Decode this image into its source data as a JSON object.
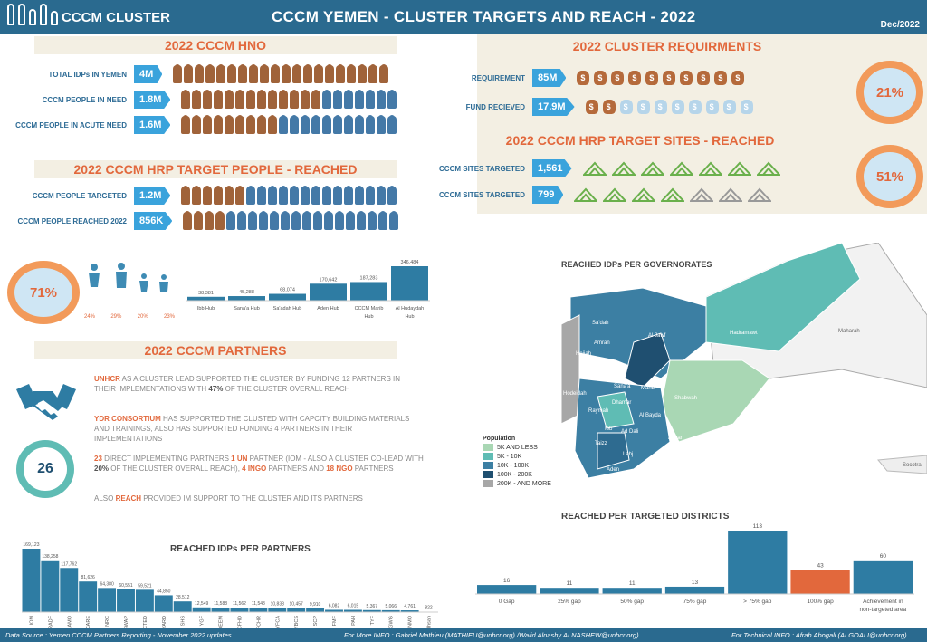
{
  "header": {
    "logo": "CCCM CLUSTER",
    "title": "CCCM YEMEN - CLUSTER TARGETS AND REACH - 2022",
    "date": "Dec/2022"
  },
  "hno": {
    "title": "2022 CCCM HNO",
    "rows": [
      {
        "label": "TOTAL IDPs IN YEMEN",
        "value": "4M"
      },
      {
        "label": "CCCM PEOPLE IN NEED",
        "value": "1.8M"
      },
      {
        "label": "CCCM PEOPLE IN ACUTE NEED",
        "value": "1.6M"
      }
    ]
  },
  "hrp_people": {
    "title": "2022 CCCM HRP TARGET PEOPLE  - REACHED",
    "rows": [
      {
        "label": "CCCM PEOPLE TARGETED",
        "value": "1.2M"
      },
      {
        "label": "CCCM PEOPLE REACHED 2022",
        "value": "856K"
      }
    ]
  },
  "requirements": {
    "title": "2022 CLUSTER REQUIRMENTS",
    "rows": [
      {
        "label": "REQUIREMENT",
        "value": "85M"
      },
      {
        "label": "FUND RECIEVED",
        "value": "17.9M"
      }
    ],
    "percent": "21%"
  },
  "sites": {
    "title": "2022 CCCM HRP TARGET SITES - REACHED",
    "rows": [
      {
        "label": "CCCM SITES TARGETED",
        "value": "1,561"
      },
      {
        "label": "CCCM SITES TARGETED",
        "value": "799"
      }
    ],
    "percent": "51%"
  },
  "reach": {
    "percent": "71%",
    "demo": [
      "24%",
      "29%",
      "20%",
      "23%"
    ]
  },
  "partners": {
    "title": "2022 CCCM PARTNERS",
    "count": "26",
    "p1_org": "UNHCR",
    "p1_a": " AS A CLUSTER LEAD SUPPORTED THE CLUSTER BY FUNDING 12 PARTNERS IN THEIR IMPLEMENTATIONS WITH ",
    "p1_pct": "47%",
    "p1_b": " OF THE CLUSTER OVERALL REACH",
    "p2_org": "YDR CONSORTIUM",
    "p2_a": "  HAS SUPPORTED THE CLUSTED WITH CAPCITY BUILDING MATERIALS AND TRAININGS, ALSO HAS SUPPORTED FUNDING 4 PARTNERS IN THEIR IMPLEMENTATIONS",
    "p3_n": "23",
    "p3_a": " DIRECT IMPLEMENTING PARTNERS ",
    "p3_un": "1 UN",
    "p3_b": " PARTNER (IOM - ALSO A CLUSTER CO-LEAD WITH ",
    "p3_pct": "20%",
    "p3_c": " OF THE CLUSTER OVERALL REACH), ",
    "p3_ingo": "4 INGO",
    "p3_d": " PARTNERS AND ",
    "p3_ngo": "18 NGO",
    "p3_e": " PARTNERS",
    "p4_a": "ALSO ",
    "p4_org": "REACH",
    "p4_b": "  PROVIDED IM SUPPORT TO THE CLUSTER AND ITS PARTNERS"
  },
  "map": {
    "title": "REACHED IDPs PER GOVERNORATES",
    "legend_title": "Population",
    "legend": [
      {
        "label": "5K AND LESS",
        "color": "#a9d7b4"
      },
      {
        "label": "5K - 10K",
        "color": "#5fbcb4"
      },
      {
        "label": "10K - 100K",
        "color": "#3c7fa3"
      },
      {
        "label": "100K - 200K",
        "color": "#1f4f70"
      },
      {
        "label": "200K - AND MORE",
        "color": "#a7a7a7"
      }
    ],
    "places": [
      "Sa'dah",
      "Al Jawf",
      "Hadramawt",
      "Maharah",
      "Amran",
      "Hajjah",
      "Sana'a City",
      "Al Mahwit",
      "Sana'a",
      "Marib",
      "Hodeidah",
      "Dhamar",
      "Shabwah",
      "Raymah",
      "Al Bayda",
      "Ibb",
      "Ad Dali",
      "Abyan",
      "Taizz",
      "Lahj",
      "Aden",
      "Socotra"
    ]
  },
  "chart_data": [
    {
      "type": "bar",
      "title": "",
      "categories": [
        "Ibb Hub",
        "Sana'a Hub",
        "Sa'adah Hub",
        "Aden Hub",
        "CCCM Marib Hub",
        "Al Hudaydah Hub"
      ],
      "values": [
        38381,
        45288,
        68074,
        170642,
        187283,
        346484
      ],
      "labels": [
        "38,381",
        "45,288",
        "68,074",
        "170,642",
        "187,283",
        "346,484"
      ]
    },
    {
      "type": "bar",
      "title": "REACHED IDPs PER PARTNERS",
      "categories": [
        "IOM",
        "RADF",
        "SHAMO",
        "CARE",
        "NRC",
        "USWAP",
        "ACTED",
        "YARD",
        "SHS",
        "YGF",
        "DEEM",
        "BCFHD",
        "BFCHR",
        "YFCA",
        "YBCS",
        "SCP",
        "FMF",
        "PAH",
        "TYF",
        "GWG",
        "NMO",
        "Al Ihsan"
      ],
      "values": [
        169123,
        138258,
        117762,
        81626,
        64380,
        60551,
        59521,
        44850,
        28512,
        12549,
        11588,
        11562,
        11548,
        10838,
        10457,
        9910,
        6082,
        6015,
        5367,
        5066,
        4761,
        822
      ],
      "labels": [
        "169,123",
        "138,258",
        "117,762",
        "81,626",
        "64,380",
        "60,551",
        "59,521",
        "44,850",
        "28,512",
        "12,549",
        "11,588",
        "11,562",
        "11,548",
        "10,838",
        "10,457",
        "9,910",
        "6,082",
        "6,015",
        "5,367",
        "5,066",
        "4,761",
        "822"
      ]
    },
    {
      "type": "bar",
      "title": "REACHED PER TARGETED DISTRICTS",
      "categories": [
        "0 Gap",
        "25% gap",
        "50% gap",
        "75% gap",
        "> 75% gap",
        "100% gap",
        "Achievement in non-targeted area"
      ],
      "values": [
        16,
        11,
        11,
        13,
        113,
        43,
        60
      ],
      "colors": [
        "#2e7ca3",
        "#2e7ca3",
        "#2e7ca3",
        "#2e7ca3",
        "#2e7ca3",
        "#e2683c",
        "#2e7ca3"
      ]
    }
  ],
  "footer": {
    "source": "Data Source : Yemen CCCM Partners Reporting - November 2022 updates",
    "more": "For More INFO : Gabriel Mathieu (MATHIEU@unhcr.org) /Walid Alnashy ALNASHEW@unhcr.org)",
    "tech": "For Technical INFO : Afrah Abogali (ALGOALI@unhcr.org)"
  }
}
